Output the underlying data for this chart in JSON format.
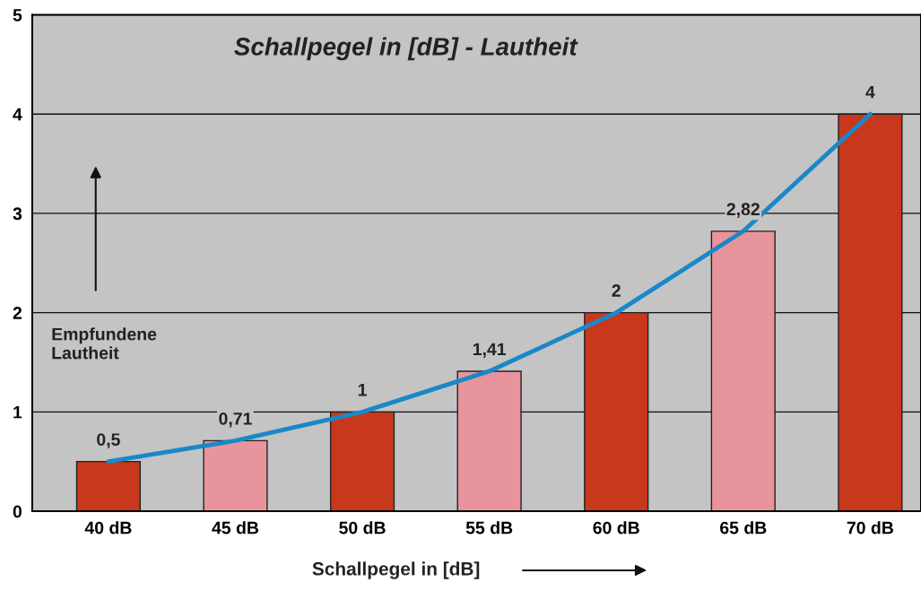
{
  "chart_data": {
    "type": "bar",
    "title": "Schallpegel in [dB] - Lautheit",
    "xlabel": "Schallpegel in [dB]",
    "annotations": [
      "Empfundene\nLautheit"
    ],
    "categories": [
      "40 dB",
      "45 dB",
      "50 dB",
      "55 dB",
      "60 dB",
      "65 dB",
      "70 dB"
    ],
    "series": [
      {
        "colors": [
          "#c8381c",
          "#e8949c",
          "#c8381c",
          "#e8949c",
          "#c8381c",
          "#e8949c",
          "#c8381c"
        ],
        "values": [
          0.5,
          0.71,
          1,
          1.41,
          2,
          2.82,
          4
        ],
        "value_labels": [
          "0,5",
          "0,71",
          "1",
          "1,41",
          "2",
          "2,82",
          "4"
        ]
      },
      {
        "type": "line",
        "color": "#1a88c8",
        "values": [
          0.5,
          0.71,
          1,
          1.41,
          2,
          2.82,
          4
        ]
      }
    ],
    "ylim": [
      0,
      5
    ],
    "yticks": [
      0,
      1,
      2,
      3,
      4,
      5
    ],
    "grid": "y"
  }
}
